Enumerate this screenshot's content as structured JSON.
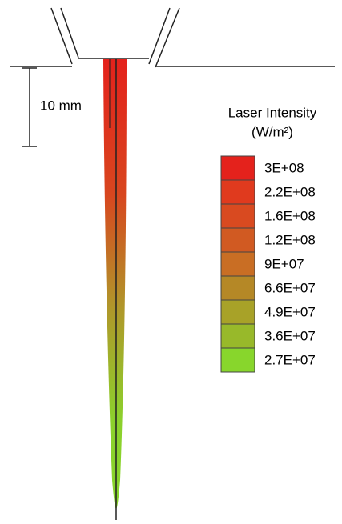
{
  "scale_bar": {
    "label": "10 mm"
  },
  "legend": {
    "title": "Laser Intensity",
    "unit": "(W/m²)",
    "levels": [
      {
        "label": "3E+08",
        "color": "#e4221c"
      },
      {
        "label": "2.2E+08",
        "color": "#e03a1e"
      },
      {
        "label": "1.6E+08",
        "color": "#d94a20"
      },
      {
        "label": "1.2E+08",
        "color": "#d15a22"
      },
      {
        "label": "9E+07",
        "color": "#c96e24"
      },
      {
        "label": "6.6E+07",
        "color": "#b58826"
      },
      {
        "label": "4.9E+07",
        "color": "#a8a228"
      },
      {
        "label": "3.6E+07",
        "color": "#98b92a"
      },
      {
        "label": "2.7E+07",
        "color": "#88d62c"
      }
    ]
  }
}
